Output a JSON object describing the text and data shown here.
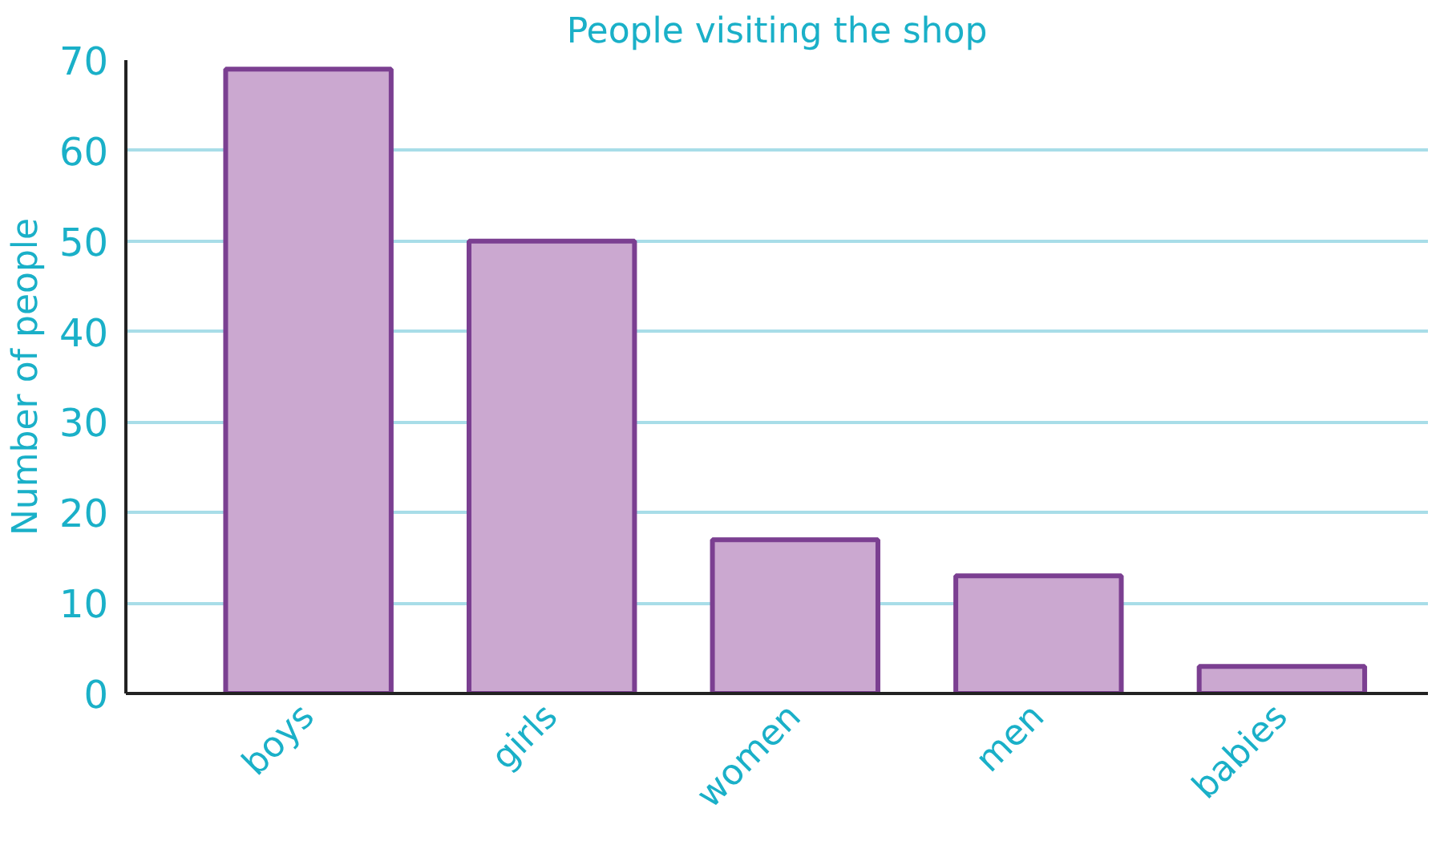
{
  "chart_data": {
    "type": "bar",
    "title": "People visiting the shop",
    "ylabel": "Number of people",
    "categories": [
      "boys",
      "girls",
      "women",
      "men",
      "babies"
    ],
    "values": [
      69,
      50,
      17,
      13,
      3
    ],
    "color": "#cba8d0",
    "ylim": [
      0,
      70
    ],
    "yticks": [
      0,
      10,
      20,
      30,
      40,
      50,
      60,
      70
    ],
    "grid": "y"
  }
}
